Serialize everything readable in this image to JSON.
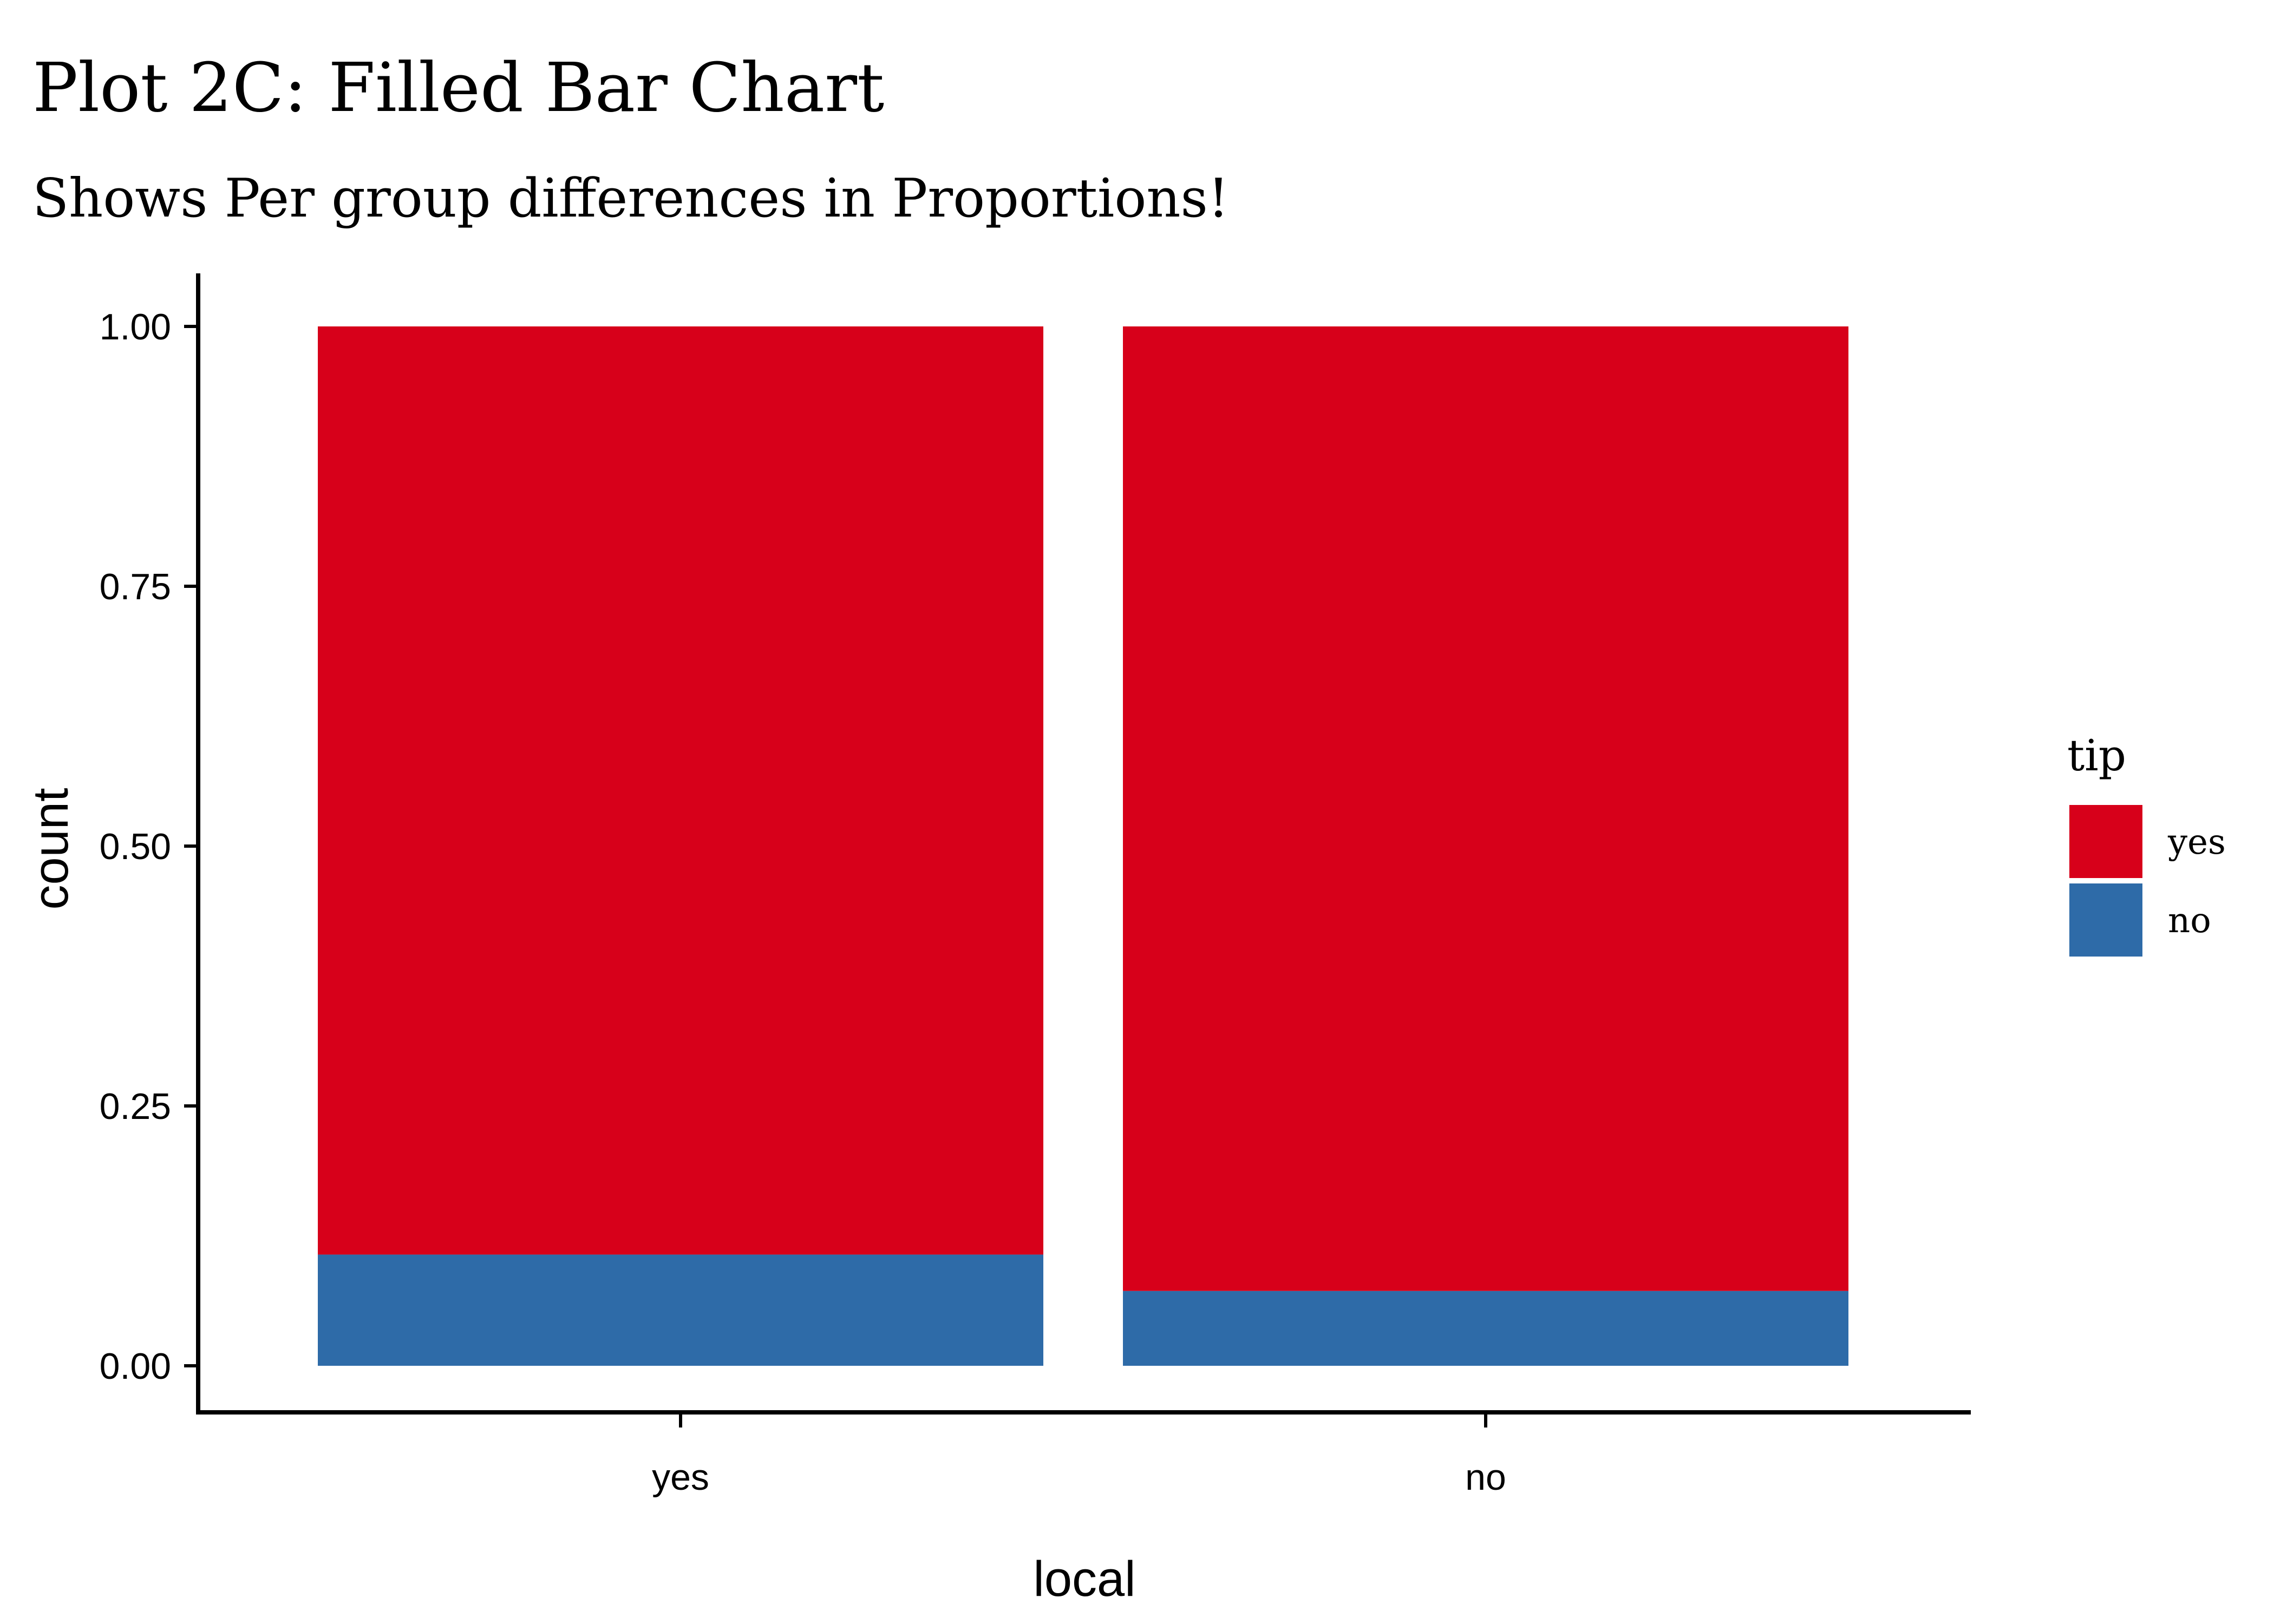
{
  "chart_data": {
    "type": "bar",
    "stacked": true,
    "position": "fill",
    "title": "Plot 2C: Filled Bar Chart",
    "subtitle": "Shows Per group differences in Proportions!",
    "xlabel": "local",
    "ylabel": "count",
    "categories": [
      "yes",
      "no"
    ],
    "ylim": [
      0,
      1
    ],
    "yticks": [
      0,
      0.25,
      0.5,
      0.75,
      1
    ],
    "ytick_labels": [
      "0.00",
      "0.25",
      "0.50",
      "0.75",
      "1.00"
    ],
    "series": [
      {
        "name": "no",
        "values": [
          0.107,
          0.072
        ],
        "color": "#2E6BA8"
      },
      {
        "name": "yes",
        "values": [
          0.893,
          0.928
        ],
        "color": "#D7001A"
      }
    ],
    "legend": {
      "title": "tip",
      "placement": "right",
      "entries": [
        {
          "label": "yes",
          "color": "#D7001A"
        },
        {
          "label": "no",
          "color": "#2E6BA8"
        }
      ]
    },
    "grid": false
  }
}
